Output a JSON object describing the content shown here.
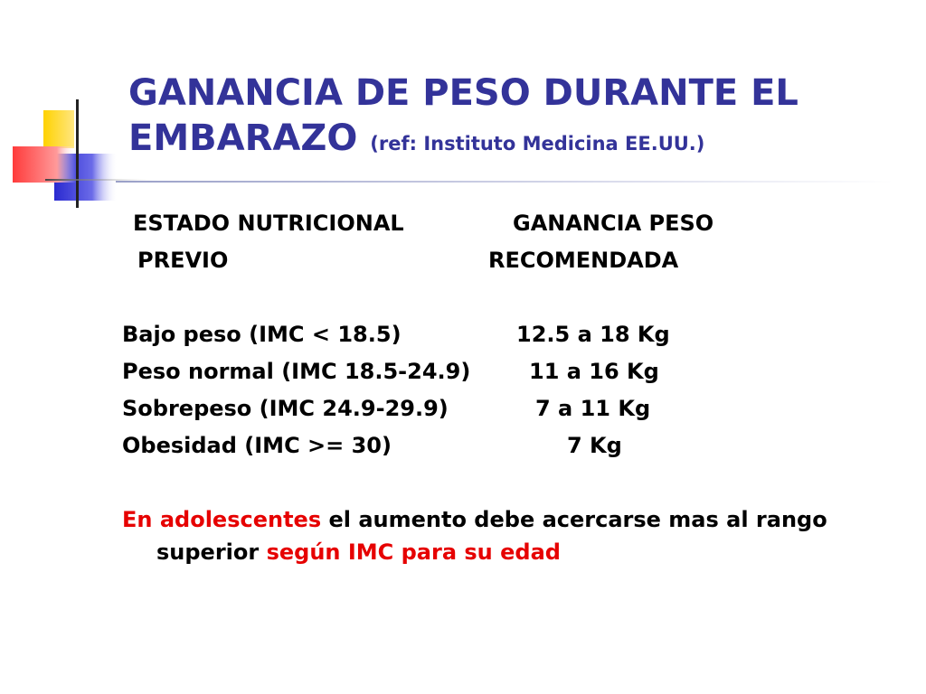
{
  "slide": {
    "title_line1": "GANANCIA DE PESO DURANTE EL",
    "title_line2": "EMBARAZO",
    "title_ref": "(ref: Instituto Medicina EE.UU.)",
    "colors": {
      "title": "#333399",
      "highlight": "#e60000",
      "text": "#000000"
    },
    "header": {
      "col1_line1": "ESTADO NUTRICIONAL",
      "col1_line2": "PREVIO",
      "col2_line1": "GANANCIA PESO",
      "col2_line2": "RECOMENDADA"
    },
    "rows": [
      {
        "status": "Bajo peso (IMC < 18.5)",
        "gain": "12.5 a 18 Kg"
      },
      {
        "status": "Peso normal (IMC 18.5-24.9)",
        "gain": "11 a 16 Kg"
      },
      {
        "status": "Sobrepeso (IMC 24.9-29.9)",
        "gain": "7 a 11 Kg"
      },
      {
        "status": "Obesidad (IMC >= 30)",
        "gain": "7 Kg"
      }
    ],
    "note": {
      "part1": "En adolescentes",
      "part2": " el aumento debe acercarse mas al rango",
      "part3": "superior ",
      "part4": "según IMC para su edad"
    }
  }
}
